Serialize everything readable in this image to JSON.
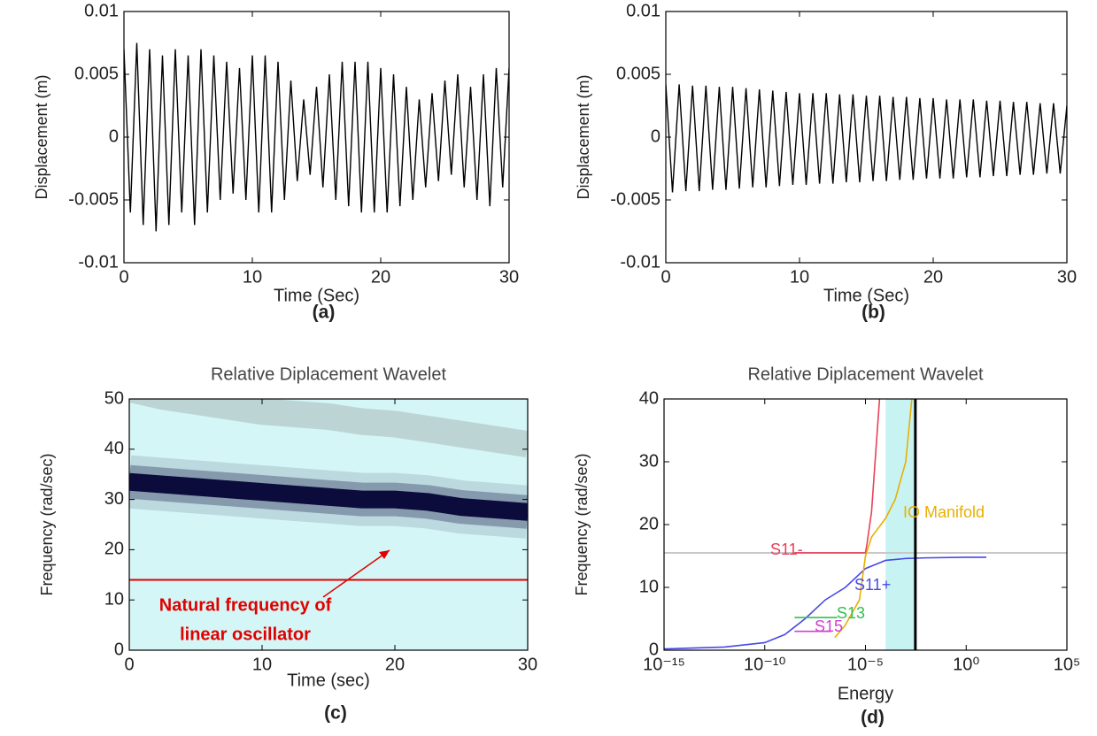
{
  "chart_data": [
    {
      "type": "line",
      "panel_label": "(a)",
      "xlabel": "Time (Sec)",
      "ylabel": "Displacement (m)",
      "xlim": [
        0,
        30
      ],
      "xticks": [
        0,
        10,
        20,
        30
      ],
      "ylim": [
        -0.01,
        0.01
      ],
      "yticks": [
        -0.01,
        -0.005,
        0,
        0.005,
        0.01
      ],
      "x": [
        0,
        0.5,
        1,
        1.5,
        2,
        2.5,
        3,
        3.5,
        4,
        4.5,
        5,
        5.5,
        6,
        6.5,
        7,
        7.5,
        8,
        8.5,
        9,
        9.5,
        10,
        10.5,
        11,
        11.5,
        12,
        12.5,
        13,
        13.5,
        14,
        14.5,
        15,
        15.5,
        16,
        16.5,
        17,
        17.5,
        18,
        18.5,
        19,
        19.5,
        20,
        20.5,
        21,
        21.5,
        22,
        22.5,
        23,
        23.5,
        24,
        24.5,
        25,
        25.5,
        26,
        26.5,
        27,
        27.5,
        28,
        28.5,
        29,
        29.5,
        30
      ],
      "series": [
        {
          "color": "#000000",
          "values": [
            0.007,
            -0.006,
            0.0075,
            -0.007,
            0.007,
            -0.0075,
            0.0065,
            -0.007,
            0.007,
            -0.006,
            0.0065,
            -0.007,
            0.007,
            -0.006,
            0.0065,
            -0.005,
            0.006,
            -0.0045,
            0.0055,
            -0.005,
            0.0065,
            -0.006,
            0.0065,
            -0.006,
            0.006,
            -0.005,
            0.0045,
            -0.0035,
            0.003,
            -0.003,
            0.004,
            -0.004,
            0.005,
            -0.005,
            0.006,
            -0.0055,
            0.006,
            -0.006,
            0.006,
            -0.006,
            0.0055,
            -0.006,
            0.005,
            -0.0055,
            0.004,
            -0.005,
            0.003,
            -0.004,
            0.0035,
            -0.0035,
            0.0045,
            -0.003,
            0.005,
            -0.004,
            0.004,
            -0.005,
            0.005,
            -0.0055,
            0.0055,
            -0.004,
            0.0055
          ]
        }
      ]
    },
    {
      "type": "line",
      "panel_label": "(b)",
      "xlabel": "Time (Sec)",
      "ylabel": "Displacement (m)",
      "xlim": [
        0,
        30
      ],
      "xticks": [
        0,
        10,
        20,
        30
      ],
      "ylim": [
        -0.01,
        0.01
      ],
      "yticks": [
        -0.01,
        -0.005,
        0,
        0.005,
        0.01
      ],
      "x": [
        0,
        0.5,
        1,
        1.5,
        2,
        2.5,
        3,
        3.5,
        4,
        4.5,
        5,
        5.5,
        6,
        6.5,
        7,
        7.5,
        8,
        8.5,
        9,
        9.5,
        10,
        10.5,
        11,
        11.5,
        12,
        12.5,
        13,
        13.5,
        14,
        14.5,
        15,
        15.5,
        16,
        16.5,
        17,
        17.5,
        18,
        18.5,
        19,
        19.5,
        20,
        20.5,
        21,
        21.5,
        22,
        22.5,
        23,
        23.5,
        24,
        24.5,
        25,
        25.5,
        26,
        26.5,
        27,
        27.5,
        28,
        28.5,
        29,
        29.5,
        30
      ],
      "series": [
        {
          "color": "#000000",
          "values": [
            0.0042,
            -0.0044,
            0.0042,
            -0.0043,
            0.0041,
            -0.0043,
            0.0041,
            -0.0042,
            0.004,
            -0.0042,
            0.004,
            -0.0041,
            0.0039,
            -0.004,
            0.0038,
            -0.004,
            0.0037,
            -0.0039,
            0.0036,
            -0.0038,
            0.0035,
            -0.0038,
            0.0035,
            -0.0037,
            0.0035,
            -0.0037,
            0.0034,
            -0.0036,
            0.0034,
            -0.0036,
            0.0033,
            -0.0035,
            0.0033,
            -0.0035,
            0.0032,
            -0.0034,
            0.0032,
            -0.0034,
            0.0031,
            -0.0033,
            0.0031,
            -0.0033,
            0.003,
            -0.0033,
            0.003,
            -0.0032,
            0.003,
            -0.0032,
            0.0029,
            -0.0031,
            0.0029,
            -0.0031,
            0.0028,
            -0.003,
            0.0028,
            -0.003,
            0.0027,
            -0.0029,
            0.0027,
            -0.0029,
            0.0025
          ]
        }
      ]
    },
    {
      "type": "wavelet",
      "title": "Relative Diplacement Wavelet",
      "panel_label": "(c)",
      "xlabel": "Time (sec)",
      "ylabel": "Frequency (rad/sec)",
      "xlim": [
        0,
        30
      ],
      "xticks": [
        0,
        10,
        20,
        30
      ],
      "ylim": [
        0,
        50
      ],
      "yticks": [
        0,
        10,
        20,
        30,
        40,
        50
      ],
      "background": "#d4f6f6",
      "x": [
        0,
        2.5,
        5,
        7.5,
        10,
        12.5,
        15,
        17.5,
        20,
        22.5,
        25,
        27.5,
        30
      ],
      "ridge": [
        33.5,
        33,
        32.5,
        32,
        31.5,
        31,
        30.5,
        30,
        30,
        29.5,
        28.5,
        28,
        27.5
      ],
      "ridge_color": "#0b0b3c",
      "upper_band": [
        52,
        50.5,
        49.5,
        48.5,
        47.5,
        47,
        46.5,
        45.5,
        45,
        44,
        43,
        42,
        41
      ],
      "band_color": "#b5cccc",
      "natural_frequency": 14,
      "annotation_color": "#e00000",
      "annotation": [
        "Natural frequency of",
        "linear oscillator"
      ]
    },
    {
      "type": "line",
      "title": "Relative Diplacement Wavelet",
      "panel_label": "(d)",
      "xlabel": "Energy",
      "ylabel": "Frequency (rad/sec)",
      "xscale": "log",
      "xlim": [
        1e-15,
        100000
      ],
      "xticks": [
        {
          "value": 1e-15,
          "label": "10⁻¹⁵"
        },
        {
          "value": 1e-10,
          "label": "10⁻¹⁰"
        },
        {
          "value": 1e-05,
          "label": "10⁻⁵"
        },
        {
          "value": 1,
          "label": "10⁰"
        },
        {
          "value": 100000,
          "label": "10⁵"
        }
      ],
      "ylim": [
        0,
        40
      ],
      "yticks": [
        0,
        10,
        20,
        30,
        40
      ],
      "shaded_band": [
        0.0001,
        0.003
      ],
      "band_color": "#c8f3f3",
      "energy_line": 0.003,
      "hline": 15.5,
      "series": [
        {
          "name": "S11-",
          "color": "#e8405a",
          "x": [
            3e-09,
            1e-05,
            1.2e-05,
            2e-05,
            3e-05,
            5e-05
          ],
          "values": [
            15.5,
            15.5,
            17,
            22,
            30,
            40
          ]
        },
        {
          "name": "S11+",
          "color": "#4848e8",
          "x": [
            1e-15,
            1e-12,
            1e-10,
            1e-09,
            1e-08,
            1e-07,
            1e-06,
            1e-05,
            0.0001,
            0.001,
            0.01,
            1,
            10
          ],
          "values": [
            0.2,
            0.5,
            1.2,
            2.5,
            5,
            8,
            10,
            13,
            14.3,
            14.6,
            14.7,
            14.8,
            14.8
          ]
        },
        {
          "name": "S13",
          "color": "#30c050",
          "x": [
            3e-09,
            4e-07
          ],
          "values": [
            5.2,
            5.2
          ]
        },
        {
          "name": "S15",
          "color": "#d040d0",
          "x": [
            3e-09,
            2e-07
          ],
          "values": [
            3,
            3
          ]
        },
        {
          "name": "IO Manifold",
          "color": "#e8b000",
          "x": [
            3e-07,
            1e-06,
            5e-06,
            1e-05,
            2e-05,
            0.0001,
            0.0003,
            0.001,
            0.002
          ],
          "values": [
            2,
            4,
            8,
            15,
            18,
            21,
            24,
            30,
            40
          ]
        }
      ]
    }
  ]
}
